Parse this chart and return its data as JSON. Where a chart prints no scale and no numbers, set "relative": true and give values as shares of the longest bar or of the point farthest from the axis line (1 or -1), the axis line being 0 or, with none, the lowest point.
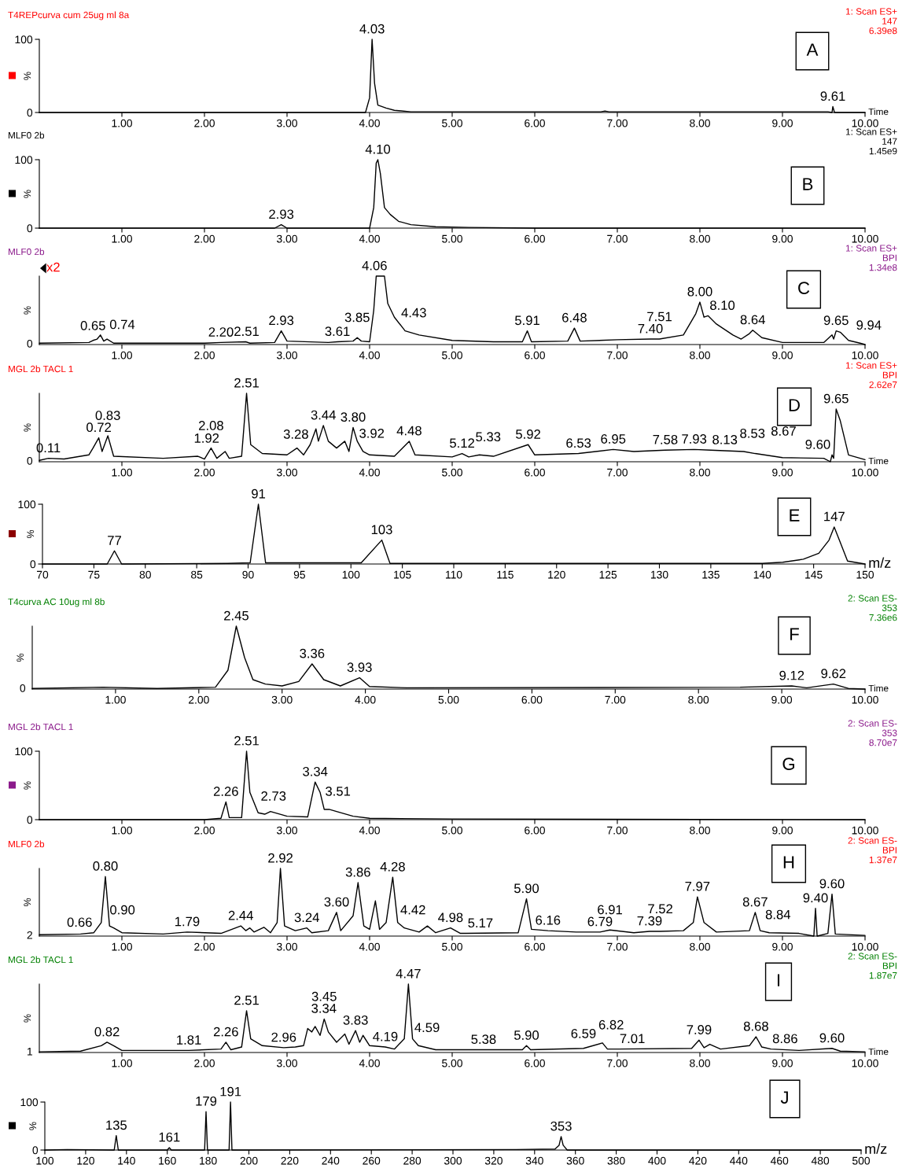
{
  "chart_data": [
    {
      "type": "line",
      "title": "T4REPcurva cum 25ug ml 8a",
      "subtitle": "1: Scan ES+\n147\n6.39e8",
      "xlabel": "Time",
      "ylabel": "%",
      "xlim": [
        0,
        10
      ],
      "xticks": [
        {
          "value": 1,
          "label": "1.00"
        },
        {
          "value": 2,
          "label": "2.00"
        },
        {
          "value": 3,
          "label": "3.00"
        },
        {
          "value": 4,
          "label": "4.00"
        },
        {
          "value": 5,
          "label": "5.00"
        },
        {
          "value": 6,
          "label": "6.00"
        },
        {
          "value": 7,
          "label": "7.00"
        },
        {
          "value": 8,
          "label": "8.00"
        },
        {
          "value": 9,
          "label": "9.00"
        },
        {
          "value": 10,
          "label": "10.00"
        }
      ],
      "ylim": [
        0,
        100
      ],
      "yticks": [
        0,
        100
      ],
      "series": [
        {
          "color": "#000000",
          "x": [
            0,
            3.95,
            4.0,
            4.03,
            4.06,
            4.1,
            4.2,
            4.3,
            4.5,
            5,
            6.8,
            6.85,
            6.9,
            7.2,
            8.5,
            9.55,
            9.6,
            9.61,
            9.63,
            10
          ],
          "values": [
            0,
            0,
            20,
            100,
            40,
            10,
            6,
            3,
            1,
            1,
            1,
            2,
            1,
            1,
            1,
            1,
            0,
            8,
            0,
            0
          ]
        }
      ],
      "annotations": [
        "A",
        {
          "text": "4.03",
          "x": 4.03,
          "y": 100
        },
        {
          "text": "9.61",
          "x": 9.61,
          "y": 8
        }
      ]
    },
    {
      "type": "line",
      "title": "MLF0 2b",
      "subtitle": "1: Scan ES+\n147\n1.45e9",
      "ylabel": "%",
      "xlim": [
        0,
        10
      ],
      "xticks": [
        {
          "value": 1,
          "label": "1.00"
        },
        {
          "value": 2,
          "label": "2.00"
        },
        {
          "value": 3,
          "label": "3.00"
        },
        {
          "value": 4,
          "label": "4.00"
        },
        {
          "value": 5,
          "label": "5.00"
        },
        {
          "value": 6,
          "label": "6.00"
        },
        {
          "value": 7,
          "label": "7.00"
        },
        {
          "value": 8,
          "label": "8.00"
        },
        {
          "value": 9,
          "label": "9.00"
        },
        {
          "value": 10,
          "label": "10.00"
        }
      ],
      "ylim": [
        0,
        100
      ],
      "yticks": [
        0,
        100
      ],
      "series": [
        {
          "color": "#000000",
          "x": [
            0,
            2.85,
            2.93,
            3.0,
            4.0,
            4.05,
            4.08,
            4.1,
            4.13,
            4.18,
            4.25,
            4.35,
            4.5,
            4.8,
            5.2,
            6,
            10
          ],
          "values": [
            0,
            0,
            5,
            0,
            0,
            30,
            95,
            100,
            80,
            30,
            20,
            10,
            5,
            2,
            1,
            0,
            0
          ]
        }
      ],
      "annotations": [
        "B",
        {
          "text": "2.93",
          "x": 2.93,
          "y": 5
        },
        {
          "text": "4.10",
          "x": 4.1,
          "y": 100
        }
      ]
    },
    {
      "type": "line",
      "relative": true,
      "title": "MLF0 2b",
      "subtitle": "1: Scan ES+\nBPI\n1.34e8",
      "ylabel": "%",
      "xlim": [
        0,
        10
      ],
      "xticks": [
        {
          "value": 1,
          "label": "1.00"
        },
        {
          "value": 2,
          "label": "2.00"
        },
        {
          "value": 3,
          "label": "3.00"
        },
        {
          "value": 4,
          "label": "4.00"
        },
        {
          "value": 5,
          "label": "5.00"
        },
        {
          "value": 6,
          "label": "6.00"
        },
        {
          "value": 7,
          "label": "7.00"
        },
        {
          "value": 8,
          "label": "8.00"
        },
        {
          "value": 9,
          "label": "9.00"
        },
        {
          "value": 10,
          "label": "10.00"
        }
      ],
      "series": [
        {
          "color": "#000000",
          "x": [
            0,
            0.6,
            0.65,
            0.7,
            0.74,
            0.78,
            0.82,
            0.9,
            2.0,
            2.2,
            2.5,
            2.55,
            2.85,
            2.93,
            3.0,
            3.5,
            3.61,
            3.8,
            3.85,
            3.9,
            4.0,
            4.05,
            4.08,
            4.18,
            4.22,
            4.3,
            4.43,
            4.6,
            5.0,
            5.5,
            5.85,
            5.91,
            5.96,
            6.4,
            6.48,
            6.55,
            7.0,
            7.4,
            7.51,
            7.8,
            7.95,
            8.0,
            8.05,
            8.1,
            8.2,
            8.4,
            8.5,
            8.6,
            8.64,
            8.75,
            9.0,
            9.5,
            9.6,
            9.62,
            9.65,
            9.7,
            9.8,
            9.94,
            10
          ],
          "values": [
            0.02,
            0.03,
            0.06,
            0.08,
            0.14,
            0.05,
            0.08,
            0.02,
            0.02,
            0.03,
            0.04,
            0.02,
            0.03,
            0.2,
            0.05,
            0.03,
            0.04,
            0.05,
            0.1,
            0.05,
            0.04,
            0.5,
            1,
            1,
            0.6,
            0.4,
            0.2,
            0.14,
            0.06,
            0.04,
            0.04,
            0.2,
            0.04,
            0.05,
            0.24,
            0.05,
            0.07,
            0.08,
            0.08,
            0.14,
            0.45,
            0.62,
            0.4,
            0.42,
            0.3,
            0.14,
            0.08,
            0.16,
            0.21,
            0.1,
            0.03,
            0.03,
            0.14,
            0.08,
            0.2,
            0.18,
            0.06,
            0.02,
            0
          ]
        }
      ],
      "annotations": [
        "C",
        "x2",
        {
          "text": "0",
          "x": 0,
          "y": 0
        },
        {
          "text": "0.65",
          "x": 0.65,
          "y": 0.06
        },
        {
          "text": "0.74",
          "x": 0.74,
          "y": 0.14
        },
        {
          "text": "2.20",
          "x": 2.2,
          "y": 0.03
        },
        {
          "text": "2.51",
          "x": 2.51,
          "y": 0.04
        },
        {
          "text": "2.93",
          "x": 2.93,
          "y": 0.2
        },
        {
          "text": "3.61",
          "x": 3.61,
          "y": 0.04
        },
        {
          "text": "3.85",
          "x": 3.85,
          "y": 0.1
        },
        {
          "text": "4.06",
          "x": 4.06,
          "y": 1
        },
        {
          "text": "4.43",
          "x": 4.43,
          "y": 0.2
        },
        {
          "text": "5.91",
          "x": 5.91,
          "y": 0.2
        },
        {
          "text": "6.48",
          "x": 6.48,
          "y": 0.24
        },
        {
          "text": "7.40",
          "x": 7.4,
          "y": 0.08
        },
        {
          "text": "7.51",
          "x": 7.51,
          "y": 0.08
        },
        {
          "text": "8.00",
          "x": 8.0,
          "y": 0.62
        },
        {
          "text": "8.10",
          "x": 8.1,
          "y": 0.42
        },
        {
          "text": "8.64",
          "x": 8.64,
          "y": 0.21
        },
        {
          "text": "9.65",
          "x": 9.65,
          "y": 0.2
        },
        {
          "text": "9.94",
          "x": 9.94,
          "y": 0.02
        }
      ]
    },
    {
      "type": "line",
      "relative": true,
      "title": "MGL 2b TACL 1",
      "subtitle": "1: Scan ES+\nBPI\n2.62e7",
      "xlabel": "Time",
      "ylabel": "%",
      "xlim": [
        0,
        10
      ],
      "xticks": [
        {
          "value": 1,
          "label": "1.00"
        },
        {
          "value": 2,
          "label": "2.00"
        },
        {
          "value": 3,
          "label": "3.00"
        },
        {
          "value": 4,
          "label": "4.00"
        },
        {
          "value": 5,
          "label": "5.00"
        },
        {
          "value": 6,
          "label": "6.00"
        },
        {
          "value": 7,
          "label": "7.00"
        },
        {
          "value": 8,
          "label": "8.00"
        },
        {
          "value": 9,
          "label": "9.00"
        },
        {
          "value": 10,
          "label": "10.00"
        }
      ],
      "series": [
        {
          "color": "#000000",
          "x": [
            0,
            0.11,
            0.3,
            0.6,
            0.65,
            0.72,
            0.76,
            0.83,
            0.9,
            1.5,
            1.92,
            2.0,
            2.08,
            2.15,
            2.25,
            2.3,
            2.45,
            2.51,
            2.56,
            2.7,
            3.0,
            3.12,
            3.2,
            3.28,
            3.35,
            3.38,
            3.44,
            3.5,
            3.6,
            3.7,
            3.75,
            3.8,
            3.85,
            3.92,
            4.0,
            4.3,
            4.48,
            4.55,
            5.0,
            5.12,
            5.2,
            5.33,
            5.5,
            5.92,
            6.0,
            6.53,
            6.95,
            7.2,
            7.58,
            7.93,
            8.13,
            8.53,
            8.67,
            9.0,
            9.5,
            9.58,
            9.6,
            9.62,
            9.65,
            9.7,
            9.8,
            10
          ],
          "values": [
            0.02,
            0.05,
            0.04,
            0.1,
            0.2,
            0.35,
            0.15,
            0.38,
            0.08,
            0.05,
            0.08,
            0.04,
            0.2,
            0.05,
            0.15,
            0.05,
            0.08,
            1,
            0.25,
            0.12,
            0.1,
            0.2,
            0.1,
            0.25,
            0.48,
            0.3,
            0.53,
            0.3,
            0.2,
            0.3,
            0.15,
            0.5,
            0.3,
            0.15,
            0.1,
            0.08,
            0.3,
            0.1,
            0.07,
            0.12,
            0.07,
            0.1,
            0.08,
            0.25,
            0.1,
            0.12,
            0.18,
            0.15,
            0.17,
            0.18,
            0.17,
            0.15,
            0.12,
            0.06,
            0.05,
            0,
            0.1,
            0.05,
            0.77,
            0.6,
            0.1,
            0.03
          ]
        }
      ],
      "annotations": [
        "D",
        {
          "text": "0",
          "x": 0,
          "y": 0
        },
        {
          "text": "0.11",
          "x": 0.11,
          "y": 0.05
        },
        {
          "text": "0.72",
          "x": 0.72,
          "y": 0.35
        },
        {
          "text": "0.83",
          "x": 0.83,
          "y": 0.38
        },
        {
          "text": "1.92",
          "x": 1.92,
          "y": 0.08
        },
        {
          "text": "2.08",
          "x": 2.08,
          "y": 0.2
        },
        {
          "text": "2.51",
          "x": 2.51,
          "y": 1
        },
        {
          "text": "3.28",
          "x": 3.28,
          "y": 0.25
        },
        {
          "text": "3.44",
          "x": 3.44,
          "y": 0.53
        },
        {
          "text": "3.80",
          "x": 3.8,
          "y": 0.5
        },
        {
          "text": "3.92",
          "x": 3.92,
          "y": 0.15
        },
        {
          "text": "4.48",
          "x": 4.48,
          "y": 0.3
        },
        {
          "text": "5.12",
          "x": 5.12,
          "y": 0.12
        },
        {
          "text": "5.33",
          "x": 5.33,
          "y": 0.1
        },
        {
          "text": "5.92",
          "x": 5.92,
          "y": 0.25
        },
        {
          "text": "6.53",
          "x": 6.53,
          "y": 0.12
        },
        {
          "text": "6.95",
          "x": 6.95,
          "y": 0.18
        },
        {
          "text": "7.58",
          "x": 7.58,
          "y": 0.17
        },
        {
          "text": "7.93",
          "x": 7.93,
          "y": 0.18
        },
        {
          "text": "8.13",
          "x": 8.13,
          "y": 0.17
        },
        {
          "text": "8.53",
          "x": 8.53,
          "y": 0.15
        },
        {
          "text": "8.67",
          "x": 8.67,
          "y": 0.12
        },
        {
          "text": "9.60",
          "x": 9.6,
          "y": 0.1
        },
        {
          "text": "9.65",
          "x": 9.65,
          "y": 0.77
        }
      ]
    },
    {
      "type": "line",
      "xlabel": "m/z",
      "ylabel": "%",
      "xlim": [
        70,
        150
      ],
      "xticks": [
        70,
        75,
        80,
        85,
        90,
        95,
        100,
        105,
        110,
        115,
        120,
        125,
        130,
        135,
        140,
        145,
        150
      ],
      "ylim": [
        0,
        100
      ],
      "yticks": [
        0,
        100
      ],
      "series": [
        {
          "color": "#000000",
          "x": [
            70,
            76.3,
            77,
            77.7,
            88,
            90.2,
            91,
            91.7,
            101,
            103,
            103.8,
            140,
            142,
            144,
            145.5,
            146.5,
            147,
            147.5,
            148.3,
            150
          ],
          "values": [
            0,
            0,
            22,
            0,
            1,
            2,
            100,
            2,
            2,
            40,
            1,
            1,
            3,
            8,
            18,
            40,
            62,
            40,
            5,
            0
          ]
        }
      ],
      "annotations": [
        "E",
        {
          "text": "77",
          "x": 77,
          "y": 22
        },
        {
          "text": "91",
          "x": 91,
          "y": 100
        },
        {
          "text": "103",
          "x": 103,
          "y": 40
        },
        {
          "text": "147",
          "x": 147,
          "y": 62
        }
      ]
    },
    {
      "type": "line",
      "relative": true,
      "title": "T4curva AC 10ug ml 8b",
      "subtitle": "2: Scan ES-\n353\n7.36e6",
      "xlabel": "Time",
      "ylabel": "%",
      "xlim": [
        0,
        10
      ],
      "xticks": [
        {
          "value": 1,
          "label": "1.00"
        },
        {
          "value": 2,
          "label": "2.00"
        },
        {
          "value": 3,
          "label": "3.00"
        },
        {
          "value": 4,
          "label": "4.00"
        },
        {
          "value": 5,
          "label": "5.00"
        },
        {
          "value": 6,
          "label": "6.00"
        },
        {
          "value": 7,
          "label": "7.00"
        },
        {
          "value": 8,
          "label": "8.00"
        },
        {
          "value": 9,
          "label": "9.00"
        },
        {
          "value": 10,
          "label": "10.00"
        }
      ],
      "series": [
        {
          "color": "#000000",
          "x": [
            0,
            0.85,
            1.5,
            2.2,
            2.35,
            2.45,
            2.55,
            2.65,
            2.8,
            3.0,
            3.2,
            3.36,
            3.5,
            3.7,
            3.93,
            4.05,
            4.5,
            8.5,
            9.12,
            9.3,
            9.62,
            9.8,
            10
          ],
          "values": [
            0.01,
            0.03,
            0.01,
            0.03,
            0.3,
            1,
            0.5,
            0.15,
            0.08,
            0.05,
            0.12,
            0.4,
            0.15,
            0.05,
            0.18,
            0.04,
            0.02,
            0.03,
            0.05,
            0.02,
            0.08,
            0.01,
            0
          ]
        }
      ],
      "annotations": [
        "F",
        {
          "text": "0",
          "x": 0,
          "y": 0
        },
        {
          "text": "2.45",
          "x": 2.45,
          "y": 1
        },
        {
          "text": "3.36",
          "x": 3.36,
          "y": 0.4
        },
        {
          "text": "3.93",
          "x": 3.93,
          "y": 0.18
        },
        {
          "text": "9.12",
          "x": 9.12,
          "y": 0.05
        },
        {
          "text": "9.62",
          "x": 9.62,
          "y": 0.08
        }
      ]
    },
    {
      "type": "line",
      "title": "MGL 2b TACL 1",
      "subtitle": "2: Scan ES-\n353\n8.70e7",
      "ylabel": "%",
      "xlim": [
        0,
        10
      ],
      "xticks": [
        {
          "value": 1,
          "label": "1.00"
        },
        {
          "value": 2,
          "label": "2.00"
        },
        {
          "value": 3,
          "label": "3.00"
        },
        {
          "value": 4,
          "label": "4.00"
        },
        {
          "value": 5,
          "label": "5.00"
        },
        {
          "value": 6,
          "label": "6.00"
        },
        {
          "value": 7,
          "label": "7.00"
        },
        {
          "value": 8,
          "label": "8.00"
        },
        {
          "value": 9,
          "label": "9.00"
        },
        {
          "value": 10,
          "label": "10.00"
        }
      ],
      "ylim": [
        0,
        100
      ],
      "yticks": [
        0,
        100
      ],
      "series": [
        {
          "color": "#000000",
          "x": [
            0,
            2.0,
            2.2,
            2.26,
            2.3,
            2.45,
            2.51,
            2.55,
            2.65,
            2.73,
            2.8,
            3.0,
            3.25,
            3.34,
            3.4,
            3.45,
            3.51,
            3.6,
            3.8,
            4.0,
            5,
            10
          ],
          "values": [
            0,
            0,
            2,
            26,
            3,
            3,
            100,
            40,
            10,
            8,
            12,
            5,
            4,
            55,
            40,
            15,
            15,
            12,
            5,
            2,
            1,
            0
          ]
        }
      ],
      "annotations": [
        "G",
        {
          "text": "2.26",
          "x": 2.26,
          "y": 26
        },
        {
          "text": "2.51",
          "x": 2.51,
          "y": 100
        },
        {
          "text": "2.73",
          "x": 2.73,
          "y": 8
        },
        {
          "text": "3.34",
          "x": 3.34,
          "y": 55
        },
        {
          "text": "3.51",
          "x": 3.51,
          "y": 15
        }
      ]
    },
    {
      "type": "line",
      "relative": true,
      "title": "MLF0 2b",
      "subtitle": "2: Scan ES-\nBPI\n1.37e7",
      "ylabel": "%",
      "xlim": [
        0,
        10
      ],
      "xticks": [
        {
          "value": 1,
          "label": "1.00"
        },
        {
          "value": 2,
          "label": "2.00"
        },
        {
          "value": 3,
          "label": "3.00"
        },
        {
          "value": 4,
          "label": "4.00"
        },
        {
          "value": 5,
          "label": "5.00"
        },
        {
          "value": 6,
          "label": "6.00"
        },
        {
          "value": 7,
          "label": "7.00"
        },
        {
          "value": 8,
          "label": "8.00"
        },
        {
          "value": 9,
          "label": "9.00"
        },
        {
          "value": 10,
          "label": "10.00"
        }
      ],
      "series": [
        {
          "color": "#000000",
          "x": [
            0,
            0.5,
            0.66,
            0.75,
            0.8,
            0.85,
            0.9,
            1.0,
            1.5,
            1.79,
            2.2,
            2.44,
            2.5,
            2.55,
            2.6,
            2.72,
            2.8,
            2.88,
            2.92,
            2.97,
            3.1,
            3.24,
            3.3,
            3.5,
            3.6,
            3.65,
            3.8,
            3.86,
            3.93,
            4.0,
            4.07,
            4.12,
            4.2,
            4.28,
            4.34,
            4.42,
            4.6,
            4.7,
            4.8,
            4.98,
            5.1,
            5.17,
            5.8,
            5.9,
            5.96,
            6.16,
            6.5,
            6.79,
            6.91,
            7.2,
            7.39,
            7.52,
            7.8,
            7.92,
            7.97,
            8.05,
            8.2,
            8.6,
            8.67,
            8.73,
            8.84,
            9.2,
            9.38,
            9.4,
            9.42,
            9.55,
            9.6,
            9.64,
            10
          ],
          "values": [
            0.02,
            0.03,
            0.05,
            0.2,
            0.88,
            0.15,
            0.12,
            0.05,
            0.03,
            0.06,
            0.04,
            0.15,
            0.08,
            0.12,
            0.06,
            0.13,
            0.05,
            0.2,
            1,
            0.15,
            0.08,
            0.12,
            0.05,
            0.08,
            0.35,
            0.08,
            0.3,
            0.79,
            0.15,
            0.1,
            0.52,
            0.1,
            0.2,
            0.87,
            0.2,
            0.12,
            0.06,
            0.15,
            0.05,
            0.12,
            0.04,
            0.04,
            0.05,
            0.55,
            0.1,
            0.08,
            0.06,
            0.06,
            0.09,
            0.05,
            0.07,
            0.07,
            0.08,
            0.2,
            0.58,
            0.2,
            0.06,
            0.08,
            0.35,
            0.08,
            0.05,
            0.04,
            0,
            0.41,
            0,
            0.04,
            0.62,
            0.03,
            0.01
          ]
        }
      ],
      "annotations": [
        "H",
        {
          "text": "2",
          "x": 0,
          "y": 0
        },
        {
          "text": "0.66",
          "x": 0.66,
          "y": 0.05
        },
        {
          "text": "0.80",
          "x": 0.8,
          "y": 0.88
        },
        {
          "text": "0.90",
          "x": 0.9,
          "y": 0.12
        },
        {
          "text": "1.79",
          "x": 1.79,
          "y": 0.06
        },
        {
          "text": "2.44",
          "x": 2.44,
          "y": 0.15
        },
        {
          "text": "2.92",
          "x": 2.92,
          "y": 1
        },
        {
          "text": "3.24",
          "x": 3.24,
          "y": 0.12
        },
        {
          "text": "3.60",
          "x": 3.6,
          "y": 0.35
        },
        {
          "text": "3.86",
          "x": 3.86,
          "y": 0.79
        },
        {
          "text": "4.28",
          "x": 4.28,
          "y": 0.87
        },
        {
          "text": "4.42",
          "x": 4.42,
          "y": 0.12
        },
        {
          "text": "4.98",
          "x": 4.98,
          "y": 0.12
        },
        {
          "text": "5.17",
          "x": 5.17,
          "y": 0.04
        },
        {
          "text": "5.90",
          "x": 5.9,
          "y": 0.55
        },
        {
          "text": "6.16",
          "x": 6.16,
          "y": 0.08
        },
        {
          "text": "6.79",
          "x": 6.79,
          "y": 0.06
        },
        {
          "text": "6.91",
          "x": 6.91,
          "y": 0.09
        },
        {
          "text": "7.39",
          "x": 7.39,
          "y": 0.07
        },
        {
          "text": "7.52",
          "x": 7.52,
          "y": 0.07
        },
        {
          "text": "7.97",
          "x": 7.97,
          "y": 0.58
        },
        {
          "text": "8.67",
          "x": 8.67,
          "y": 0.35
        },
        {
          "text": "8.84",
          "x": 8.84,
          "y": 0.05
        },
        {
          "text": "9.40",
          "x": 9.4,
          "y": 0.41
        },
        {
          "text": "9.60",
          "x": 9.6,
          "y": 0.62
        }
      ]
    },
    {
      "type": "line",
      "relative": true,
      "title": "MGL 2b TACL 1",
      "subtitle": "2: Scan ES-\nBPI\n1.87e7",
      "xlabel": "Time",
      "ylabel": "%",
      "xlim": [
        0,
        10
      ],
      "xticks": [
        {
          "value": 1,
          "label": "1.00"
        },
        {
          "value": 2,
          "label": "2.00"
        },
        {
          "value": 3,
          "label": "3.00"
        },
        {
          "value": 4,
          "label": "4.00"
        },
        {
          "value": 5,
          "label": "5.00"
        },
        {
          "value": 6,
          "label": "6.00"
        },
        {
          "value": 7,
          "label": "7.00"
        },
        {
          "value": 8,
          "label": "8.00"
        },
        {
          "value": 9,
          "label": "9.00"
        },
        {
          "value": 10,
          "label": "10.00"
        }
      ],
      "series": [
        {
          "color": "#000000",
          "x": [
            0,
            0.5,
            0.75,
            0.82,
            0.9,
            1.0,
            1.81,
            2.2,
            2.26,
            2.32,
            2.45,
            2.51,
            2.56,
            2.7,
            2.96,
            3.1,
            3.2,
            3.25,
            3.3,
            3.34,
            3.4,
            3.45,
            3.5,
            3.6,
            3.7,
            3.75,
            3.83,
            3.88,
            3.92,
            4.0,
            4.19,
            4.3,
            4.42,
            4.47,
            4.52,
            4.59,
            4.8,
            5.38,
            5.85,
            5.9,
            5.95,
            6.59,
            6.82,
            6.88,
            7.01,
            7.9,
            7.99,
            8.05,
            8.12,
            8.25,
            8.6,
            8.68,
            8.75,
            8.86,
            9.2,
            9.6,
            9.7,
            10
          ],
          "values": [
            0.01,
            0.02,
            0.1,
            0.15,
            0.1,
            0.03,
            0.03,
            0.05,
            0.15,
            0.04,
            0.08,
            0.61,
            0.2,
            0.1,
            0.07,
            0.08,
            0.1,
            0.35,
            0.3,
            0.38,
            0.25,
            0.49,
            0.3,
            0.15,
            0.27,
            0.12,
            0.32,
            0.15,
            0.25,
            0.1,
            0.08,
            0.05,
            0.2,
            1,
            0.2,
            0.1,
            0.04,
            0.04,
            0.04,
            0.1,
            0.04,
            0.06,
            0.14,
            0.05,
            0.05,
            0.06,
            0.18,
            0.07,
            0.12,
            0.05,
            0.1,
            0.23,
            0.08,
            0.05,
            0.03,
            0.06,
            0.02,
            0.01
          ]
        }
      ],
      "annotations": [
        "I",
        {
          "text": "1",
          "x": 0,
          "y": 0
        },
        {
          "text": "0.82",
          "x": 0.82,
          "y": 0.15
        },
        {
          "text": "1.81",
          "x": 1.81,
          "y": 0.03
        },
        {
          "text": "2.26",
          "x": 2.26,
          "y": 0.15
        },
        {
          "text": "2.51",
          "x": 2.51,
          "y": 0.61
        },
        {
          "text": "2.96",
          "x": 2.96,
          "y": 0.07
        },
        {
          "text": "3.34",
          "x": 3.34,
          "y": 0.38
        },
        {
          "text": "3.45",
          "x": 3.45,
          "y": 0.49
        },
        {
          "text": "3.83",
          "x": 3.83,
          "y": 0.32
        },
        {
          "text": "4.19",
          "x": 4.19,
          "y": 0.08
        },
        {
          "text": "4.47",
          "x": 4.47,
          "y": 1
        },
        {
          "text": "4.59",
          "x": 4.59,
          "y": 0.1
        },
        {
          "text": "5.38",
          "x": 5.38,
          "y": 0.04
        },
        {
          "text": "5.90",
          "x": 5.9,
          "y": 0.1
        },
        {
          "text": "6.59",
          "x": 6.59,
          "y": 0.06
        },
        {
          "text": "6.82",
          "x": 6.82,
          "y": 0.14
        },
        {
          "text": "7.01",
          "x": 7.01,
          "y": 0.05
        },
        {
          "text": "7.99",
          "x": 7.99,
          "y": 0.18
        },
        {
          "text": "8.68",
          "x": 8.68,
          "y": 0.23
        },
        {
          "text": "8.86",
          "x": 8.86,
          "y": 0.05
        },
        {
          "text": "9.60",
          "x": 9.6,
          "y": 0.06
        }
      ]
    },
    {
      "type": "line",
      "xlabel": "m/z",
      "ylabel": "%",
      "xlim": [
        100,
        500
      ],
      "xticks": [
        100,
        120,
        140,
        160,
        180,
        200,
        220,
        240,
        260,
        280,
        300,
        320,
        340,
        360,
        380,
        400,
        420,
        440,
        460,
        480,
        500
      ],
      "ylim": [
        0,
        100
      ],
      "yticks": [
        0,
        100
      ],
      "series": [
        {
          "color": "#000000",
          "x": [
            100,
            111,
            134,
            135,
            136,
            160,
            161,
            162,
            178.3,
            179,
            179.7,
            190.3,
            191,
            191.7,
            331,
            350,
            352,
            353,
            354,
            356,
            500
          ],
          "values": [
            0,
            1,
            0,
            30,
            0,
            0,
            5,
            0,
            0,
            80,
            0,
            0,
            100,
            0,
            1,
            2,
            10,
            28,
            10,
            0,
            0
          ]
        }
      ],
      "annotations": [
        "J",
        {
          "text": "135",
          "x": 135,
          "y": 30
        },
        {
          "text": "161",
          "x": 161,
          "y": 5
        },
        {
          "text": "179",
          "x": 179,
          "y": 80
        },
        {
          "text": "191",
          "x": 191,
          "y": 100
        },
        {
          "text": "353",
          "x": 353,
          "y": 28
        }
      ]
    }
  ]
}
